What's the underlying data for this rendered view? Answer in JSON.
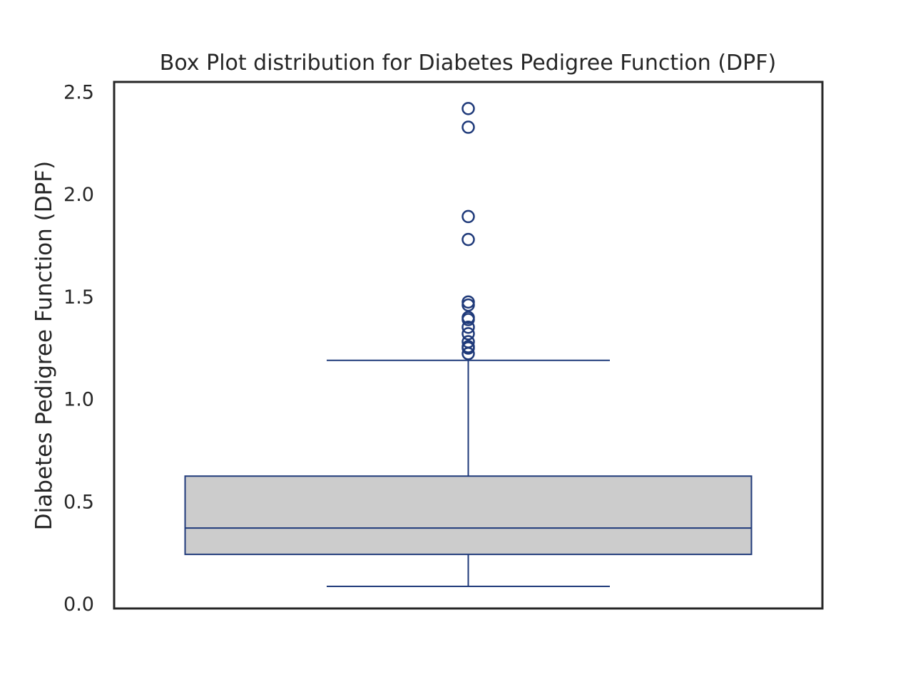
{
  "chart_data": {
    "type": "box",
    "title": "Box Plot distribution for Diabetes Pedigree Function (DPF)",
    "xlabel": "",
    "ylabel": "Diabetes Pedigree Function (DPF)",
    "ylim": [
      -0.02,
      2.55
    ],
    "yticks": [
      0.0,
      0.5,
      1.0,
      1.5,
      2.0,
      2.5
    ],
    "ytick_labels": [
      "0.0",
      "0.5",
      "1.0",
      "1.5",
      "2.0",
      "2.5"
    ],
    "grid": false,
    "box": {
      "whisker_low": 0.088,
      "q1": 0.244,
      "median": 0.3725,
      "q3": 0.626,
      "whisker_high": 1.191
    },
    "outliers": [
      2.42,
      2.329,
      1.893,
      1.781,
      1.476,
      1.461,
      1.4,
      1.39,
      1.353,
      1.321,
      1.282,
      1.258,
      1.251,
      1.224
    ],
    "colors": {
      "box_fill": "#cccccc",
      "box_edge": "#1f3a7a",
      "axis": "#262626"
    }
  }
}
